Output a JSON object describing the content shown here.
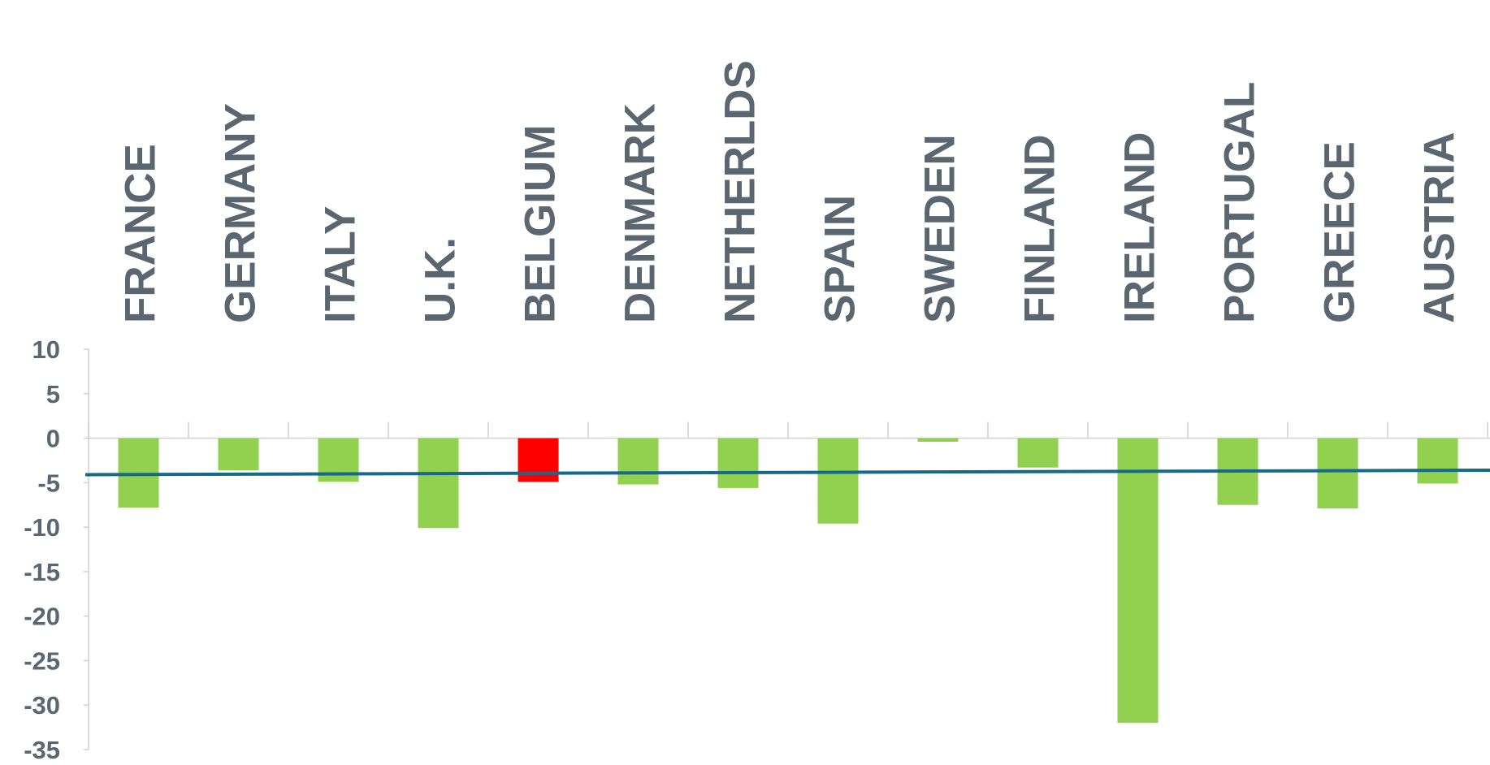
{
  "chart_data": {
    "type": "bar",
    "title": "",
    "xlabel": "",
    "ylabel": "",
    "categories": [
      "FRANCE",
      "GERMANY",
      "ITALY",
      "U.K.",
      "BELGIUM",
      "DENMARK",
      "NETHERLDS",
      "SPAIN",
      "SWEDEN",
      "FINLAND",
      "IRELAND",
      "PORTUGAL",
      "GREECE",
      "AUSTRIA"
    ],
    "values": [
      -7.8,
      -3.6,
      -4.9,
      -10.1,
      -4.9,
      -5.2,
      -5.6,
      -9.6,
      -0.4,
      -3.3,
      -32.0,
      -7.5,
      -7.9,
      -5.1
    ],
    "ylim": [
      -35,
      10
    ],
    "yticks": [
      10,
      5,
      0,
      -5,
      -10,
      -15,
      -20,
      -25,
      -30,
      -35
    ],
    "grid": false,
    "legend": "none",
    "highlight_category": "BELGIUM",
    "reference_line": {
      "type": "line",
      "start_value": -4.1,
      "end_value": -3.6
    },
    "colors": {
      "bar": "#92d050",
      "highlight_bar": "#ff0000",
      "reference_line": "#17698a",
      "text": "#5b6770",
      "axis": "#d0d0d0"
    }
  }
}
